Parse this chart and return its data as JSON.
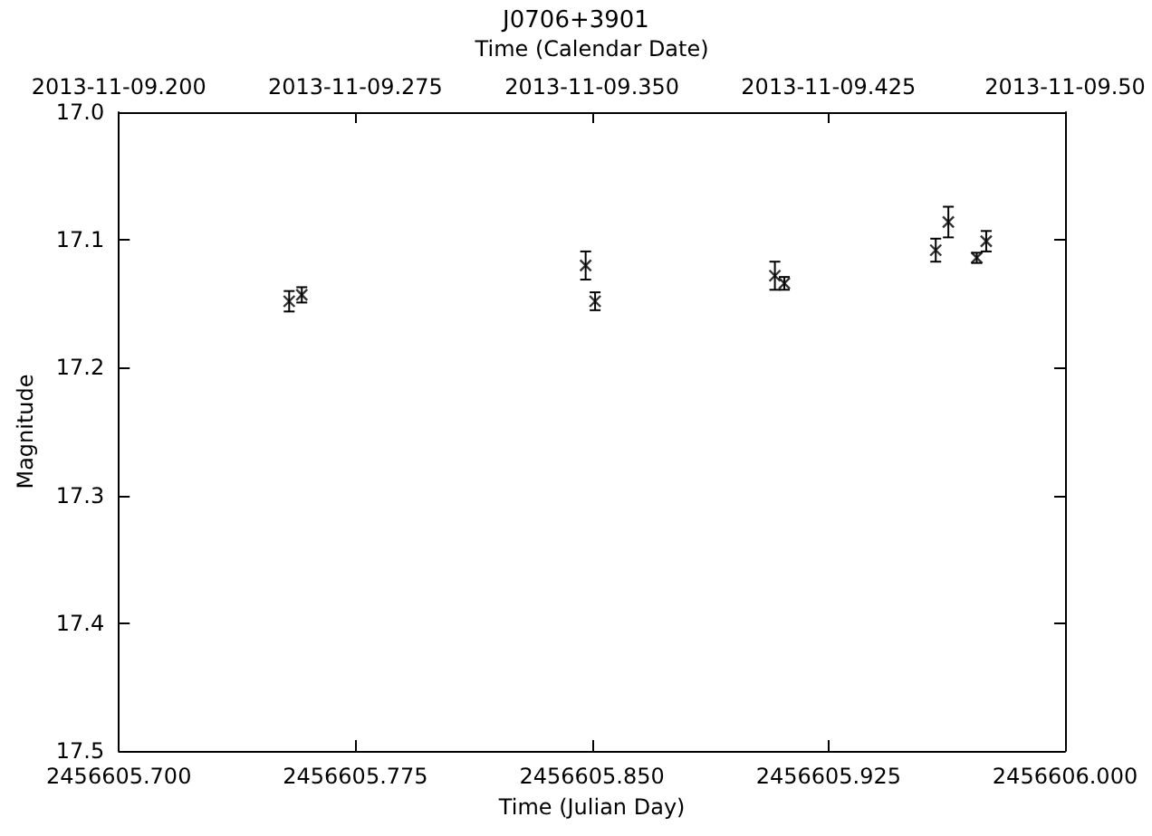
{
  "chart_data": {
    "type": "scatter",
    "title": "J0706+3901",
    "xlabel": "Time (Julian Day)",
    "x2label": "Time (Calendar Date)",
    "ylabel": "Magnitude",
    "x": [
      2456605.754,
      2456605.758,
      2456605.848,
      2456605.851,
      2456605.908,
      2456605.911,
      2456605.959,
      2456605.963,
      2456605.972,
      2456605.975
    ],
    "values": [
      17.148,
      17.143,
      17.12,
      17.148,
      17.128,
      17.134,
      17.108,
      17.086,
      17.114,
      17.101
    ],
    "errors": [
      0.008,
      0.006,
      0.011,
      0.007,
      0.011,
      0.005,
      0.009,
      0.012,
      0.004,
      0.008
    ],
    "color": "#000000",
    "marker": "cross",
    "xlim": [
      2456605.7,
      2456606.0
    ],
    "xticks": [
      {
        "value": 2456605.7,
        "label": "2456605.700"
      },
      {
        "value": 2456605.775,
        "label": "2456605.775"
      },
      {
        "value": 2456605.85,
        "label": "2456605.850"
      },
      {
        "value": 2456605.925,
        "label": "2456605.925"
      },
      {
        "value": 2456606.0,
        "label": "2456606.000"
      }
    ],
    "x2lim": [
      "2013-11-09T04:48",
      "2013-11-09T12:00"
    ],
    "x2ticks": [
      {
        "value": "2013-11-09T04:48",
        "label": "2013-11-09.200"
      },
      {
        "value": "2013-11-09T06:36",
        "label": "2013-11-09.275"
      },
      {
        "value": "2013-11-09T08:24",
        "label": "2013-11-09.350"
      },
      {
        "value": "2013-11-09T10:12",
        "label": "2013-11-09.425"
      },
      {
        "value": "2013-11-09T12:00",
        "label": "2013-11-09.50"
      }
    ],
    "ylim": [
      17.5,
      17.0
    ],
    "yticks": [
      {
        "value": 17.0,
        "label": "17.0"
      },
      17.1,
      17.2,
      17.3,
      17.4,
      17.5
    ],
    "grid": false
  }
}
